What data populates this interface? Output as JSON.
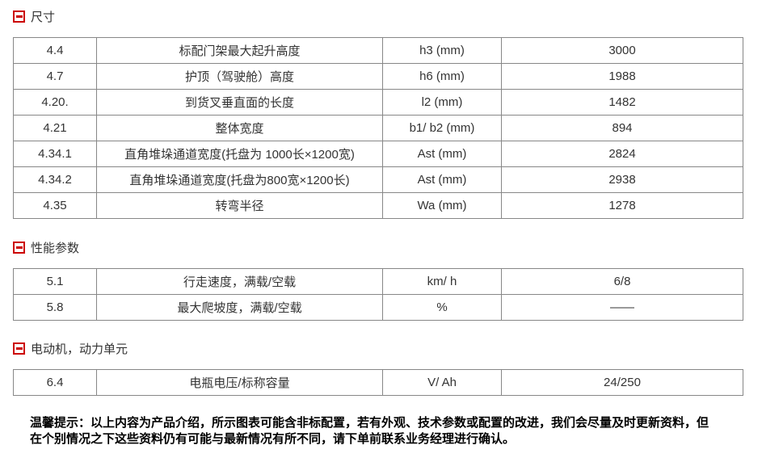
{
  "colors": {
    "accent_red": "#cc0000",
    "table_border": "#878787",
    "text": "#333333"
  },
  "sections": [
    {
      "title": "尺寸",
      "collapse_icon": "minus-box-icon",
      "rows": [
        {
          "no": "4.4",
          "desc": "标配门架最大起升高度",
          "symbol": "h3 (mm)",
          "value": "3000"
        },
        {
          "no": "4.7",
          "desc": "护顶（驾驶舱）高度",
          "symbol": "h6 (mm)",
          "value": "1988"
        },
        {
          "no": "4.20.",
          "desc": "到货叉垂直面的长度",
          "symbol": "l2 (mm)",
          "value": "1482"
        },
        {
          "no": "4.21",
          "desc": "整体宽度",
          "symbol": "b1/ b2 (mm)",
          "value": "894"
        },
        {
          "no": "4.34.1",
          "desc": "直角堆垛通道宽度(托盘为 1000长×1200宽)",
          "symbol": "Ast (mm)",
          "value": "2824"
        },
        {
          "no": "4.34.2",
          "desc": "直角堆垛通道宽度(托盘为800宽×1200长)",
          "symbol": "Ast (mm)",
          "value": "2938"
        },
        {
          "no": "4.35",
          "desc": "转弯半径",
          "symbol": "Wa (mm)",
          "value": "1278"
        }
      ]
    },
    {
      "title": "性能参数",
      "collapse_icon": "minus-box-icon",
      "rows": [
        {
          "no": "5.1",
          "desc": "行走速度，满载/空载",
          "symbol": "km/ h",
          "value": "6/8"
        },
        {
          "no": "5.8",
          "desc": "最大爬坡度，满载/空载",
          "symbol": "%",
          "value": "——"
        }
      ]
    },
    {
      "title": "电动机，动力单元",
      "collapse_icon": "minus-box-icon",
      "rows": [
        {
          "no": "6.4",
          "desc": "电瓶电压/标称容量",
          "symbol": "V/ Ah",
          "value": "24/250"
        }
      ]
    }
  ],
  "notice": {
    "line1": "温馨提示：以上内容为产品介绍，所示图表可能含非标配置，若有外观、技术参数或配置的改进，我们会尽量及时更新资料，但",
    "line2": "在个别情况之下这些资料仍有可能与最新情况有所不同，请下单前联系业务经理进行确认。"
  }
}
